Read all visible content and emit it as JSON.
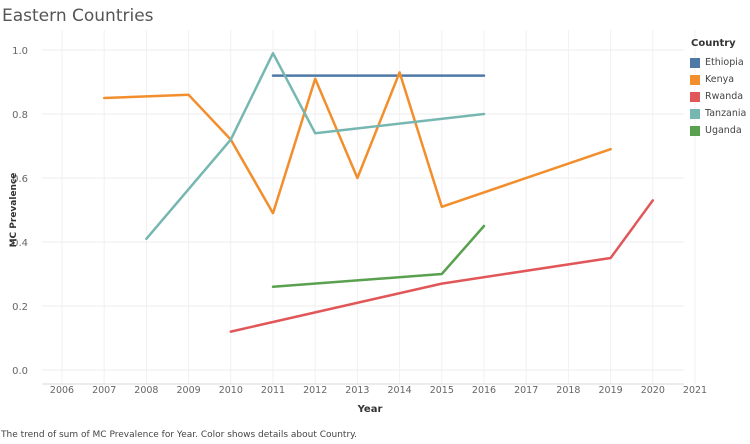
{
  "chart_data": {
    "type": "line",
    "title": "Eastern Countries",
    "xlabel": "Year",
    "ylabel": "MC Prevalence",
    "xlim": [
      2005.5,
      2021.5
    ],
    "ylim": [
      0,
      1.05
    ],
    "x_ticks": [
      2006,
      2007,
      2008,
      2009,
      2010,
      2011,
      2012,
      2013,
      2014,
      2015,
      2016,
      2017,
      2018,
      2019,
      2020,
      2021
    ],
    "y_ticks": [
      0.0,
      0.2,
      0.4,
      0.6,
      0.8,
      1.0
    ],
    "grid": true,
    "legend_title": "Country",
    "legend_position": "right",
    "series": [
      {
        "name": "Ethiopia",
        "color": "#4e79a7",
        "x": [
          2011,
          2016
        ],
        "y": [
          0.92,
          0.92
        ]
      },
      {
        "name": "Kenya",
        "color": "#f28e2b",
        "x": [
          2007,
          2009,
          2010,
          2011,
          2012,
          2013,
          2014,
          2015,
          2019
        ],
        "y": [
          0.85,
          0.86,
          0.72,
          0.49,
          0.91,
          0.6,
          0.93,
          0.51,
          0.69
        ]
      },
      {
        "name": "Rwanda",
        "color": "#e15759",
        "x": [
          2010,
          2015,
          2019,
          2020
        ],
        "y": [
          0.12,
          0.27,
          0.35,
          0.53
        ]
      },
      {
        "name": "Tanzania",
        "color": "#76b7b2",
        "x": [
          2008,
          2010,
          2011,
          2012,
          2016
        ],
        "y": [
          0.41,
          0.72,
          0.99,
          0.74,
          0.8
        ]
      },
      {
        "name": "Uganda",
        "color": "#59a14f",
        "x": [
          2011,
          2015,
          2016
        ],
        "y": [
          0.26,
          0.3,
          0.45
        ]
      }
    ]
  },
  "caption": "The trend of sum of MC Prevalence for Year.  Color shows details about Country."
}
